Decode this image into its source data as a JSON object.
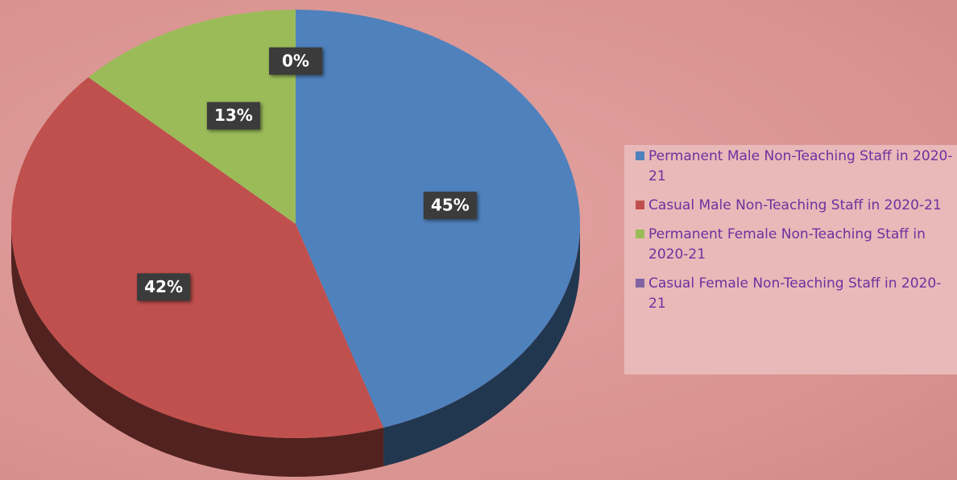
{
  "chart_data": {
    "type": "pie",
    "categories": [
      "Permanent Male Non-Teaching Staff in 2020-21",
      "Casual Male Non-Teaching Staff in 2020-21",
      "Permanent Female Non-Teaching Staff in 2020-21",
      "Casual Female Non-Teaching Staff in 2020-21"
    ],
    "values": [
      45,
      42,
      13,
      0
    ],
    "value_labels": [
      "45%",
      "42%",
      "13%",
      "0%"
    ],
    "colors": [
      "#4f81bd",
      "#c0504d",
      "#9bbb59",
      "#8064a2"
    ],
    "legend": "right"
  }
}
